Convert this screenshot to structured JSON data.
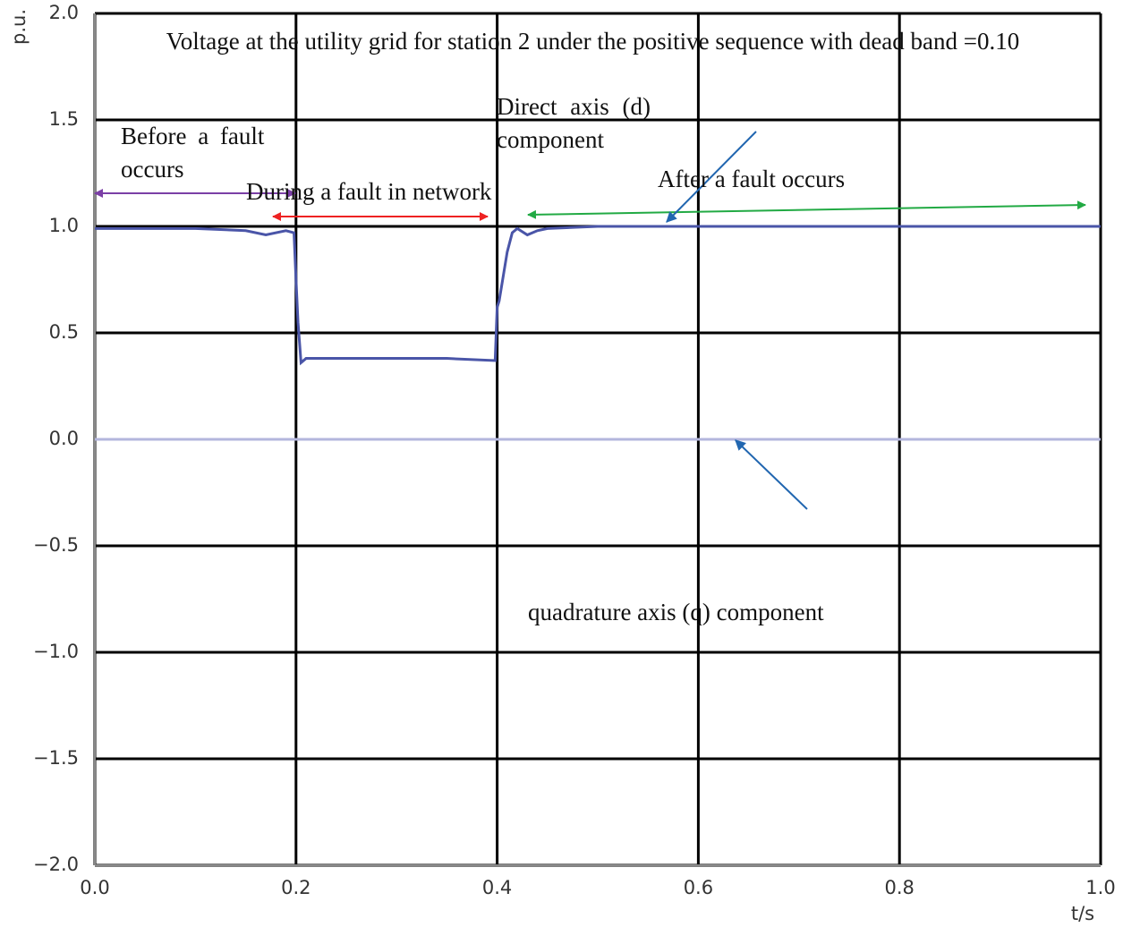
{
  "chart_data": {
    "type": "line",
    "title": "Voltage at the utility grid for station 2 under the positive sequence with dead band =0.10",
    "xlabel": "t/s",
    "ylabel": "p.u.",
    "annotations": [
      "Before a fault occurs",
      "During a fault in network",
      "Direct axis (d) component",
      "After a fault occurs",
      "quadrature axis (q) component"
    ],
    "x": [
      0,
      0.05,
      0.1,
      0.15,
      0.17,
      0.19,
      0.198,
      0.2,
      0.202,
      0.205,
      0.21,
      0.25,
      0.3,
      0.35,
      0.398,
      0.4,
      0.402,
      0.41,
      0.415,
      0.42,
      0.43,
      0.44,
      0.45,
      0.5,
      0.6,
      0.7,
      0.8,
      0.9,
      1.0
    ],
    "series": [
      {
        "name": "Direct axis (d) component",
        "color": "#4a55a8",
        "values": [
          0.99,
          0.99,
          0.99,
          0.98,
          0.96,
          0.98,
          0.97,
          0.75,
          0.55,
          0.36,
          0.38,
          0.38,
          0.38,
          0.38,
          0.37,
          0.62,
          0.65,
          0.88,
          0.97,
          0.99,
          0.96,
          0.98,
          0.99,
          1.0,
          1.0,
          1.0,
          1.0,
          1.0,
          1.0
        ]
      },
      {
        "name": "quadrature axis (q) component",
        "color": "#b3b6dd",
        "values": [
          0,
          0,
          0,
          0,
          0,
          0,
          0,
          0,
          0,
          0,
          0,
          0,
          0,
          0,
          0,
          0,
          0,
          0,
          0,
          0,
          0,
          0,
          0,
          0,
          0,
          0,
          0,
          0,
          0
        ]
      }
    ],
    "xlim": [
      0,
      1
    ],
    "ylim": [
      -2,
      2
    ],
    "xticks": [
      {
        "value": 0,
        "label": "0.0"
      },
      {
        "value": 0.2,
        "label": "0.2"
      },
      {
        "value": 0.4,
        "label": "0.4"
      },
      {
        "value": 0.6,
        "label": "0.6"
      },
      {
        "value": 0.8,
        "label": "0.8"
      },
      {
        "value": 1,
        "label": "1.0"
      }
    ],
    "yticks": [
      {
        "value": -2,
        "label": "−2.0"
      },
      {
        "value": -1.5,
        "label": "−1.5"
      },
      {
        "value": -1,
        "label": "−1.0"
      },
      {
        "value": -0.5,
        "label": "−0.5"
      },
      {
        "value": 0,
        "label": "0.0"
      },
      {
        "value": 0.5,
        "label": "0.5"
      },
      {
        "value": 1,
        "label": "1.0"
      },
      {
        "value": 1.5,
        "label": "1.5"
      },
      {
        "value": 2,
        "label": "2.0"
      }
    ],
    "grid": true
  }
}
